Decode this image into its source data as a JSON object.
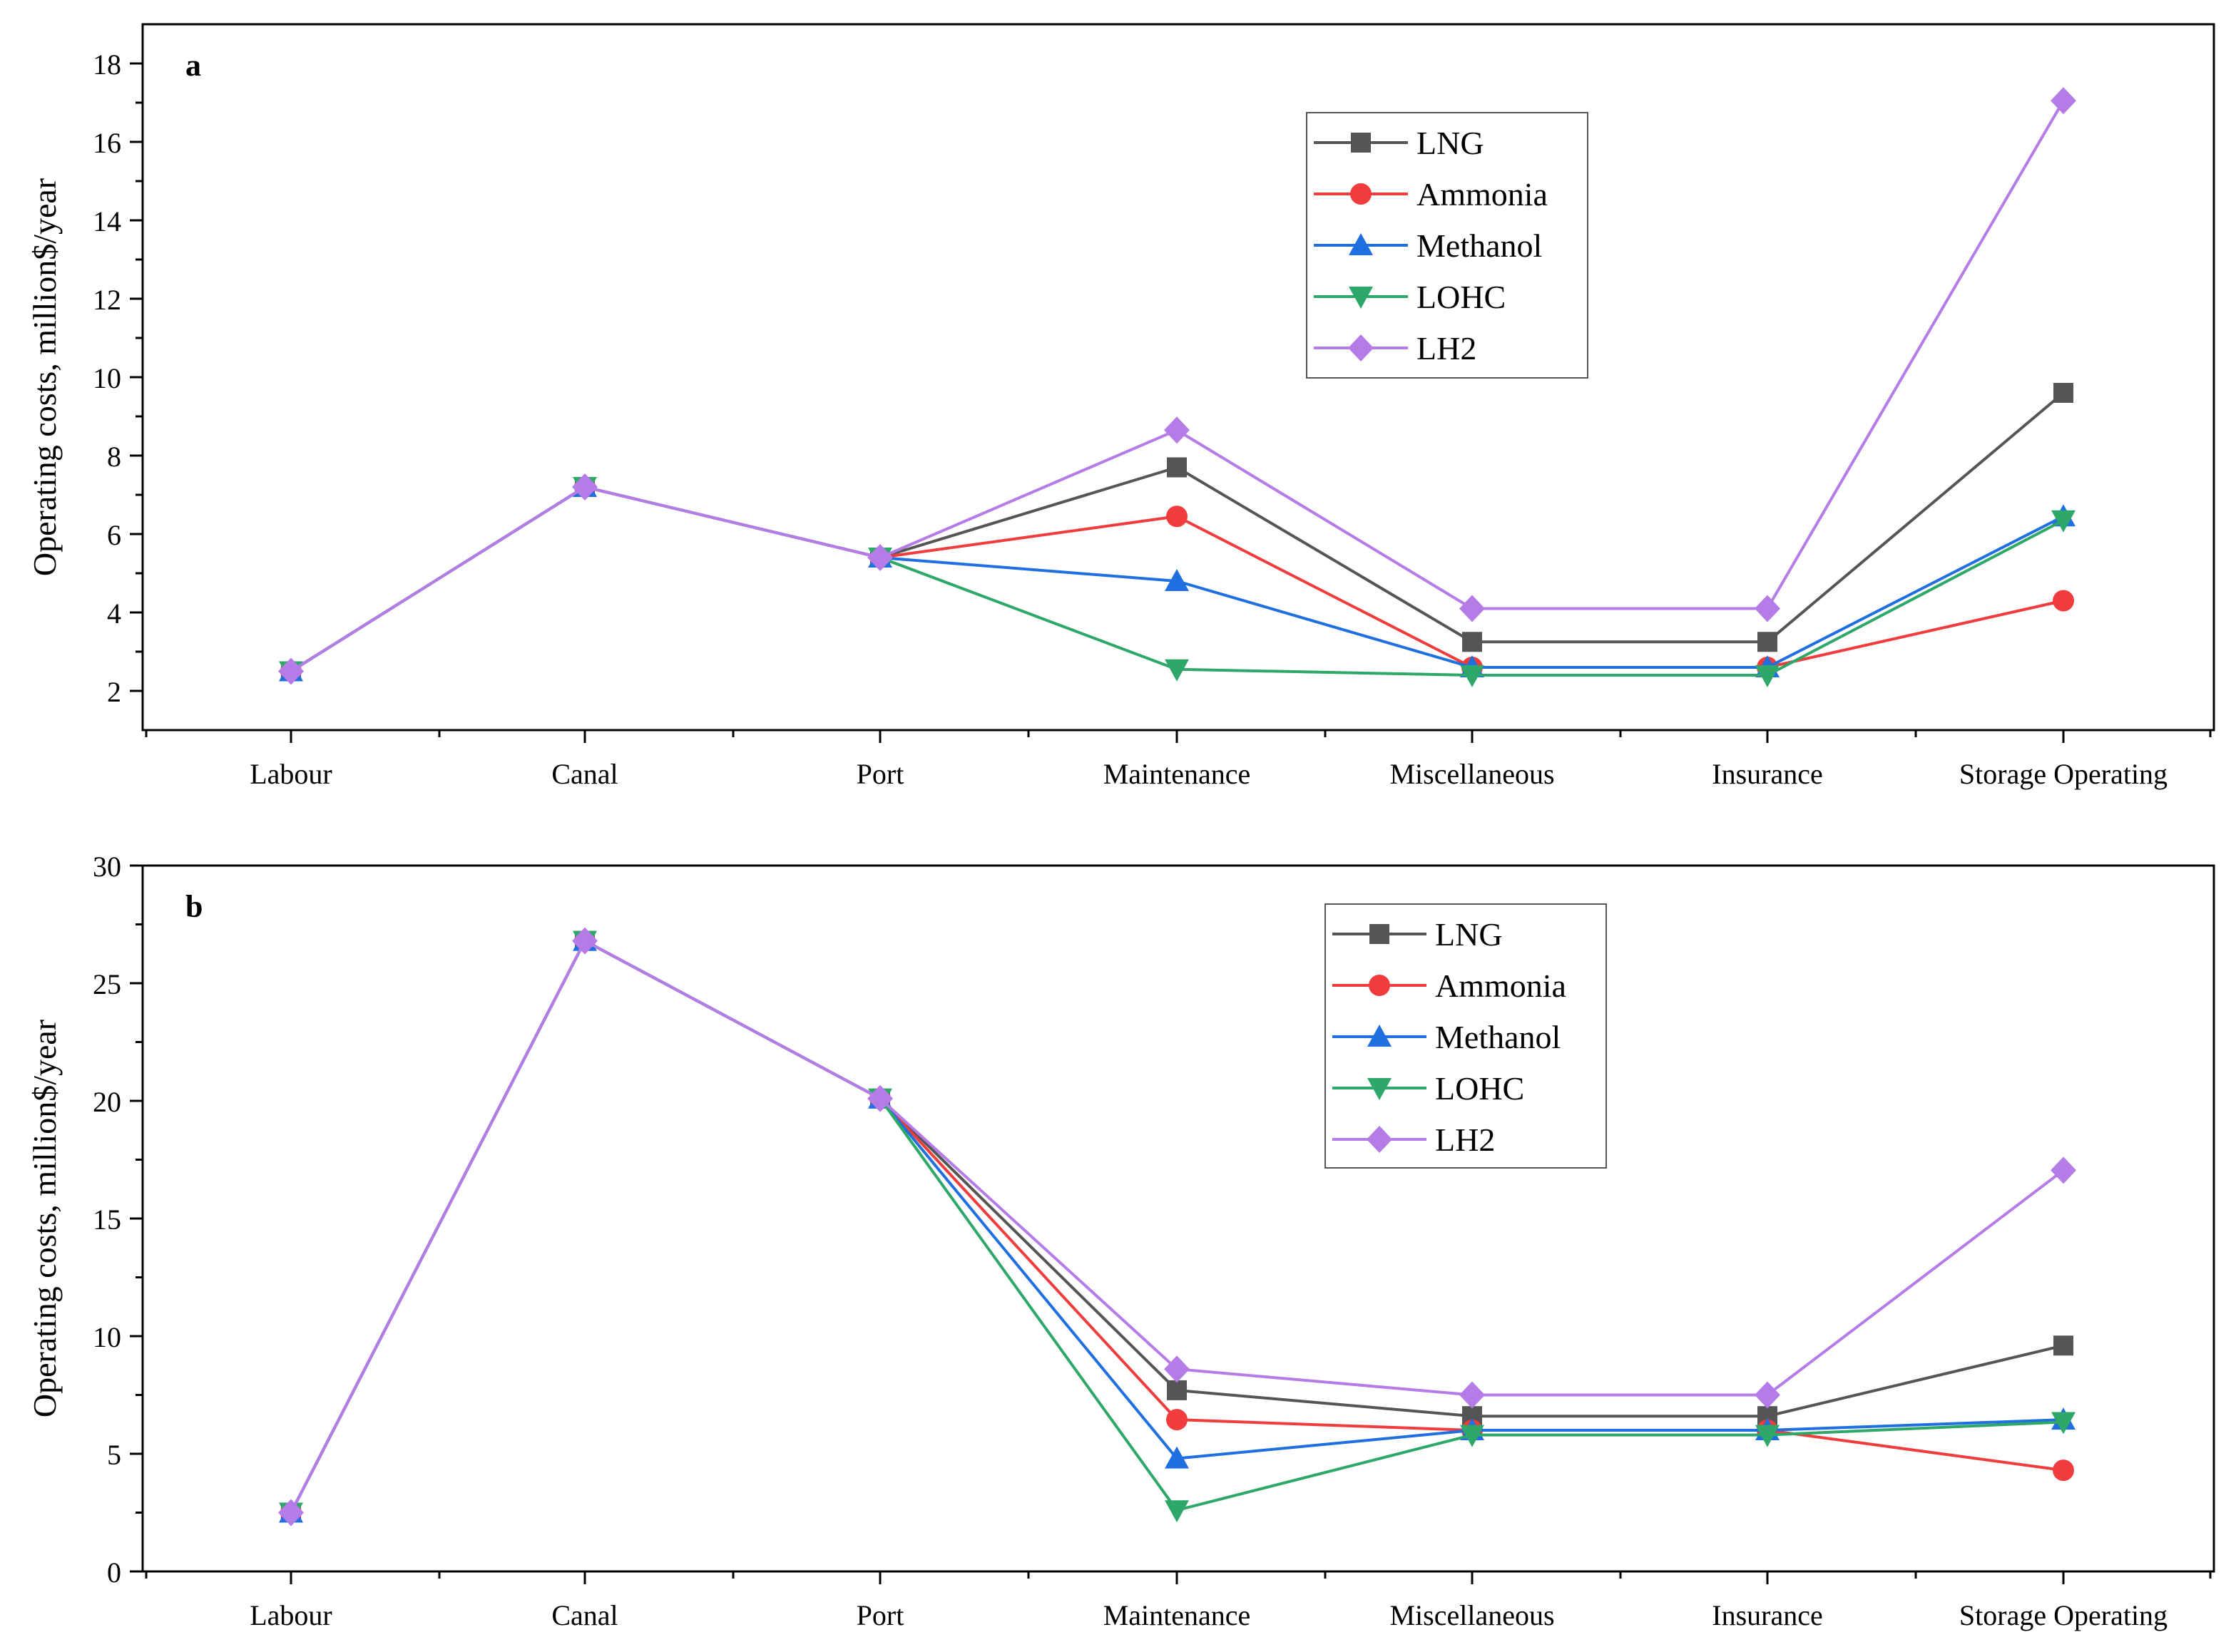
{
  "chart_data": [
    {
      "type": "line",
      "panel_label": "a",
      "ylabel": "Operating costs, million$/year",
      "ylim": [
        1,
        19
      ],
      "yticks": [
        2,
        4,
        6,
        8,
        10,
        12,
        14,
        16,
        18
      ],
      "categories": [
        "Labour",
        "Canal",
        "Port",
        "Maintenance",
        "Miscellaneous",
        "Insurance",
        "Storage Operating"
      ],
      "grid": false,
      "legend_position": "top-right",
      "series": [
        {
          "name": "LNG",
          "color": "#555555",
          "marker": "square",
          "values": [
            2.5,
            7.2,
            5.4,
            7.7,
            3.25,
            3.25,
            9.6
          ]
        },
        {
          "name": "Ammonia",
          "color": "#f03c3c",
          "marker": "circle",
          "values": [
            2.5,
            7.2,
            5.4,
            6.45,
            2.6,
            2.6,
            4.3
          ]
        },
        {
          "name": "Methanol",
          "color": "#1f6fe0",
          "marker": "triangle-up",
          "values": [
            2.5,
            7.2,
            5.4,
            4.8,
            2.6,
            2.6,
            6.45
          ]
        },
        {
          "name": "LOHC",
          "color": "#2ea868",
          "marker": "triangle-down",
          "values": [
            2.5,
            7.2,
            5.4,
            2.55,
            2.4,
            2.4,
            6.35
          ]
        },
        {
          "name": "LH2",
          "color": "#b57ce8",
          "marker": "diamond",
          "values": [
            2.5,
            7.2,
            5.4,
            8.65,
            4.1,
            4.1,
            17.05
          ]
        }
      ]
    },
    {
      "type": "line",
      "panel_label": "b",
      "ylabel": "Operating costs, million$/year",
      "ylim": [
        0,
        30
      ],
      "yticks": [
        0,
        5,
        10,
        15,
        20,
        25,
        30
      ],
      "categories": [
        "Labour",
        "Canal",
        "Port",
        "Maintenance",
        "Miscellaneous",
        "Insurance",
        "Storage Operating"
      ],
      "grid": false,
      "legend_position": "top-right",
      "series": [
        {
          "name": "LNG",
          "color": "#555555",
          "marker": "square",
          "values": [
            2.5,
            26.8,
            20.1,
            7.7,
            6.6,
            6.6,
            9.6
          ]
        },
        {
          "name": "Ammonia",
          "color": "#f03c3c",
          "marker": "circle",
          "values": [
            2.5,
            26.8,
            20.1,
            6.45,
            6.0,
            6.0,
            4.3
          ]
        },
        {
          "name": "Methanol",
          "color": "#1f6fe0",
          "marker": "triangle-up",
          "values": [
            2.5,
            26.8,
            20.1,
            4.8,
            6.0,
            6.0,
            6.45
          ]
        },
        {
          "name": "LOHC",
          "color": "#2ea868",
          "marker": "triangle-down",
          "values": [
            2.5,
            26.8,
            20.1,
            2.6,
            5.8,
            5.8,
            6.35
          ]
        },
        {
          "name": "LH2",
          "color": "#b57ce8",
          "marker": "diamond",
          "values": [
            2.5,
            26.8,
            20.1,
            8.6,
            7.5,
            7.5,
            17.05
          ]
        }
      ]
    }
  ]
}
